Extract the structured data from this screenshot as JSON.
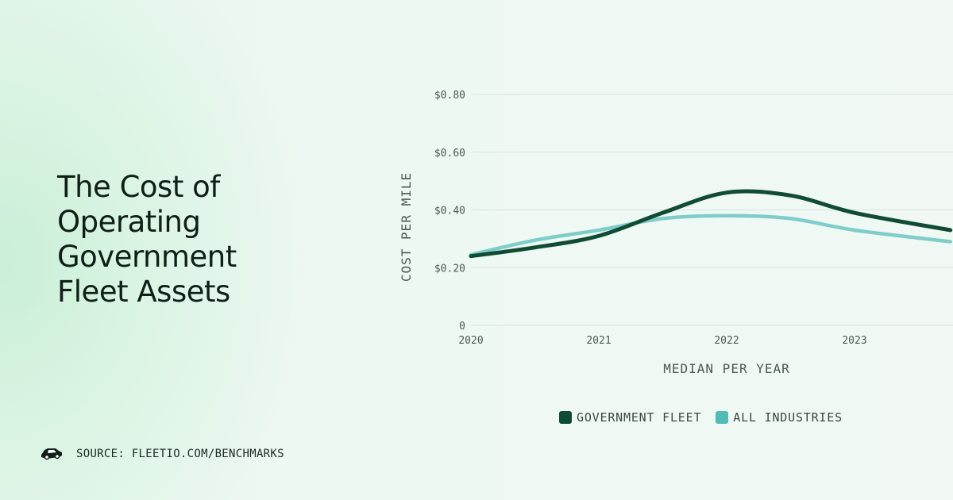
{
  "title_lines": [
    "The Cost of",
    "Operating",
    "Government",
    "Fleet Assets"
  ],
  "source": {
    "text": "SOURCE: FLEETIO.COM/BENCHMARKS",
    "icon": "fleet-vehicle-icon"
  },
  "colors": {
    "government": "#0e4d34",
    "industries": "#7ccfc9",
    "industries_swatch": "#4fbdb6",
    "grid": "#d9e2dd"
  },
  "chart_data": {
    "type": "line",
    "title": "",
    "xlabel": "MEDIAN PER YEAR",
    "ylabel": "COST PER MILE",
    "x": [
      2020,
      2020.5,
      2021,
      2021.5,
      2022,
      2022.5,
      2023,
      2023.75
    ],
    "x_ticks": [
      "2020",
      "2021",
      "2022",
      "2023"
    ],
    "y_ticks": [
      "0",
      "$0.20",
      "$0.40",
      "$0.60",
      "$0.80"
    ],
    "ylim": [
      0,
      0.8
    ],
    "grid": true,
    "legend_position": "bottom",
    "series": [
      {
        "name": "GOVERNMENT FLEET",
        "values": [
          0.24,
          0.27,
          0.31,
          0.39,
          0.46,
          0.45,
          0.39,
          0.33
        ]
      },
      {
        "name": "ALL INDUSTRIES",
        "values": [
          0.245,
          0.295,
          0.33,
          0.37,
          0.38,
          0.37,
          0.33,
          0.29
        ]
      }
    ]
  }
}
